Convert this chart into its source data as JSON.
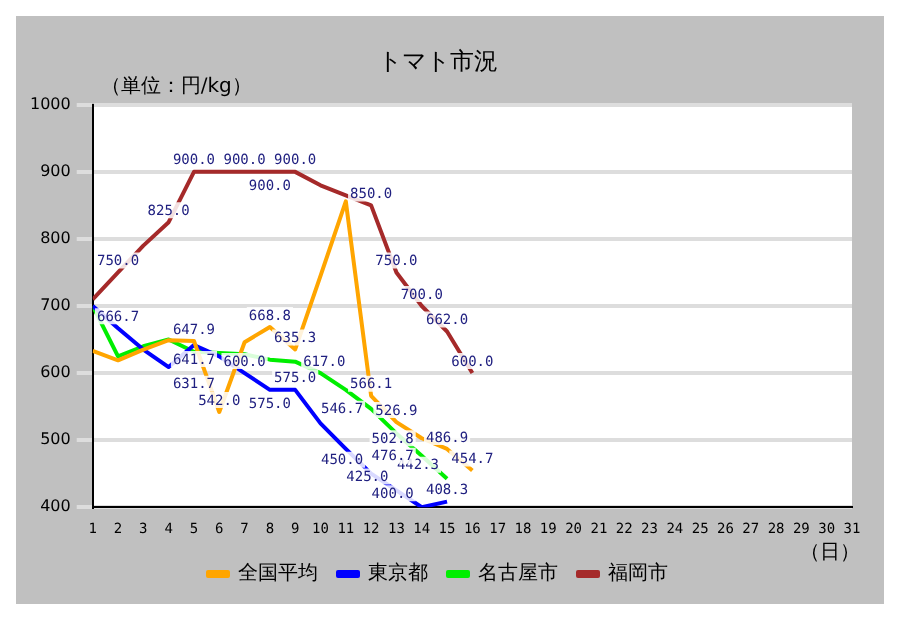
{
  "chart_data": {
    "type": "line",
    "title": "トマト市況",
    "ylabel": "（単位：円/kg）",
    "xlabel": "（日）",
    "x": [
      1,
      2,
      3,
      4,
      5,
      6,
      7,
      8,
      9,
      10,
      11,
      12,
      13,
      14,
      15,
      16
    ],
    "xlim": [
      1,
      31
    ],
    "xticks": [
      1,
      2,
      3,
      4,
      5,
      6,
      7,
      8,
      9,
      10,
      11,
      12,
      13,
      14,
      15,
      16,
      17,
      18,
      19,
      20,
      21,
      22,
      23,
      24,
      25,
      26,
      27,
      28,
      29,
      30,
      31
    ],
    "ylim": [
      400,
      1000
    ],
    "yticks": [
      400,
      500,
      600,
      700,
      800,
      900,
      1000
    ],
    "grid": "y",
    "legend": "bottom",
    "marker": "none",
    "line_style": "solid",
    "series": [
      {
        "name": "全国平均",
        "color": "#ffa500",
        "values": [
          633,
          619,
          635,
          649,
          647.9,
          542,
          646,
          668.8,
          635.3,
          745,
          856,
          566.1,
          526.9,
          502.8,
          486.9,
          454.7
        ],
        "value_labels": [
          null,
          null,
          null,
          null,
          "647.9",
          "542.0",
          null,
          "668.8",
          "635.3",
          null,
          null,
          "566.1",
          "526.9",
          "502.8",
          "486.9",
          "454.7"
        ]
      },
      {
        "name": "東京都",
        "color": "#0000ff",
        "values": [
          700,
          666.7,
          635,
          609,
          641.7,
          625,
          600,
          575,
          575,
          525,
          487,
          450,
          425,
          400,
          408.3,
          null
        ],
        "value_labels": [
          null,
          "666.7",
          null,
          null,
          "641.7",
          null,
          "600.0",
          "575.0",
          "575.0",
          null,
          null,
          "450.0",
          "425.0",
          "400.0",
          "408.3",
          null
        ]
      },
      {
        "name": "名古屋市",
        "color": "#00ee00",
        "values": [
          700,
          625,
          640,
          650,
          631.7,
          630,
          628,
          620,
          617,
          600,
          575,
          546.7,
          510,
          476.7,
          442.3,
          null
        ],
        "value_labels": [
          null,
          null,
          null,
          null,
          "631.7",
          null,
          null,
          null,
          "617.0",
          null,
          null,
          "546.7",
          null,
          "476.7",
          "442.3",
          null
        ]
      },
      {
        "name": "福岡市",
        "color": "#a52a2a",
        "values": [
          710,
          750,
          790,
          825,
          900,
          900,
          900,
          900,
          900,
          880,
          865,
          850,
          750,
          700,
          662,
          600
        ],
        "value_labels": [
          null,
          "750.0",
          null,
          "825.0",
          "900.0",
          null,
          "900.0",
          "900.0",
          "900.0",
          null,
          null,
          "850.0",
          "750.0",
          "700.0",
          "662.0",
          "600.0"
        ]
      }
    ]
  }
}
